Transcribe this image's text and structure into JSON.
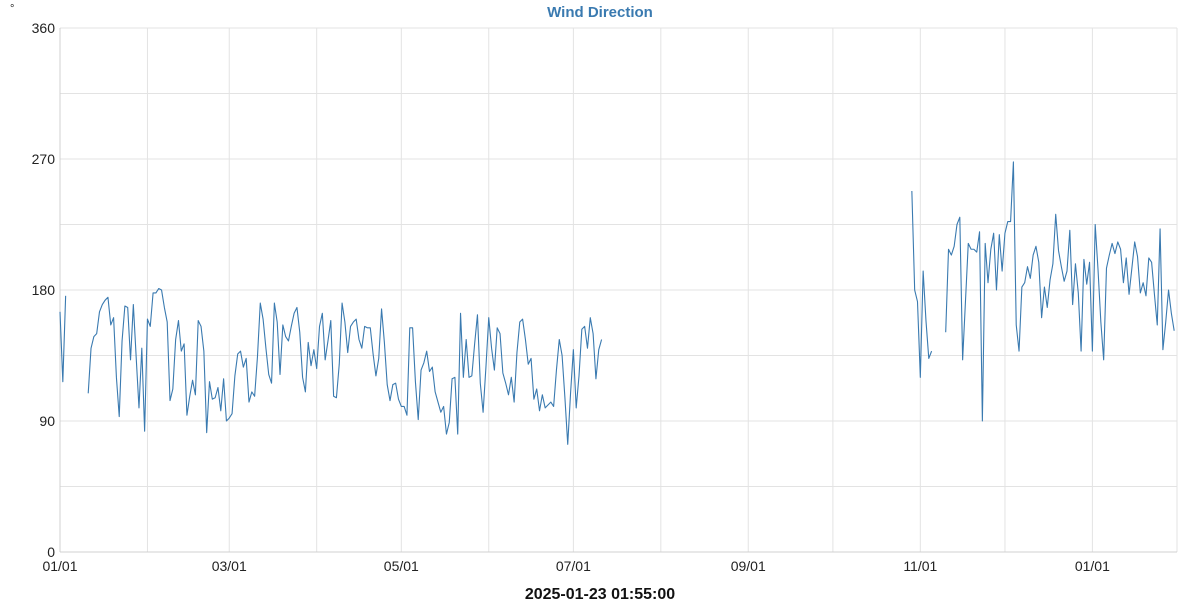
{
  "chart_data": {
    "type": "line",
    "title": "Wind Direction",
    "y_unit": "°",
    "footer": "2025-01-23 01:55:00",
    "ylim": [
      0,
      360
    ],
    "yticks": [
      0,
      90,
      180,
      270,
      360
    ],
    "xlim": [
      "2024-01-01",
      "2025-01-31"
    ],
    "xticks": [
      {
        "date": "2024-01-01",
        "label": "01/01"
      },
      {
        "date": "2024-03-01",
        "label": "03/01"
      },
      {
        "date": "2024-05-01",
        "label": "05/01"
      },
      {
        "date": "2024-07-01",
        "label": "07/01"
      },
      {
        "date": "2024-09-01",
        "label": "09/01"
      },
      {
        "date": "2024-11-01",
        "label": "11/01"
      },
      {
        "date": "2025-01-01",
        "label": "01/01"
      }
    ],
    "x_minor_grid": [
      "2024-02-01",
      "2024-04-01",
      "2024-06-01",
      "2024-08-01",
      "2024-10-01",
      "2024-12-01"
    ],
    "grid": true,
    "line_color": "#3a7ab0",
    "series": [
      {
        "segments": [
          {
            "start": "2024-01-01",
            "values": [
              165,
              117,
              176
            ]
          },
          {
            "start": "2024-01-11",
            "values": [
              109,
              140,
              148,
              150,
              165,
              170,
              173,
              175,
              156,
              161,
              120,
              93,
              145,
              169,
              168,
              132,
              170,
              134,
              99,
              140,
              83,
              160,
              155,
              178,
              178,
              181,
              180,
              168,
              158,
              104,
              112,
              146,
              159,
              138,
              143,
              94,
              107,
              118,
              108,
              159,
              155,
              138,
              82,
              117,
              105,
              106,
              113,
              97,
              119,
              90,
              92,
              95,
              121,
              136,
              138,
              127,
              133,
              103,
              110,
              107,
              134,
              171,
              160,
              140,
              122,
              116,
              171,
              158,
              122,
              156,
              148,
              145,
              155,
              164,
              168,
              151,
              120,
              110,
              144,
              128,
              139,
              126,
              155,
              164,
              132,
              145,
              159,
              107,
              106,
              129,
              171,
              158,
              137,
              155,
              158,
              160,
              146,
              140,
              155,
              154,
              154,
              136,
              121,
              133,
              167,
              144,
              115,
              104,
              115,
              116,
              105,
              100,
              100,
              94,
              154,
              154,
              117,
              91,
              125,
              130,
              138,
              124,
              127,
              110,
              103,
              96,
              100,
              81,
              89,
              119,
              120,
              81,
              164,
              120,
              146,
              120,
              121,
              143,
              163,
              116,
              96,
              127,
              161,
              140,
              125,
              154,
              150,
              123,
              116,
              108,
              120,
              103,
              137,
              158,
              160,
              146,
              129,
              133,
              105,
              112,
              97,
              108,
              99,
              101,
              103,
              100,
              125,
              146,
              135,
              106,
              74,
              109,
              139,
              99,
              121,
              153,
              155,
              140,
              161,
              150,
              119,
              139,
              146
            ]
          },
          {
            "start": "2024-10-29",
            "values": [
              248,
              180,
              172,
              120,
              193,
              159,
              133,
              138
            ]
          },
          {
            "start": "2024-11-10",
            "values": [
              151,
              208,
              204,
              210,
              225,
              230,
              132,
              172,
              212,
              208,
              208,
              206,
              220,
              90,
              212,
              185,
              208,
              219,
              180,
              218,
              193,
              219,
              227,
              227,
              268,
              156,
              138,
              182,
              185,
              196,
              188,
              204,
              210,
              199,
              161,
              182,
              168,
              187,
              198,
              232,
              207,
              196,
              186,
              193,
              221,
              170,
              198,
              178,
              138,
              201,
              184,
              199,
              138,
              225,
              194,
              158,
              132,
              195,
              204,
              212,
              205,
              213,
              208,
              185,
              202,
              177,
              195,
              213,
              203,
              178,
              185,
              176,
              202,
              199,
              177,
              156,
              222,
              139,
              158,
              180,
              164,
              152
            ]
          }
        ]
      }
    ]
  }
}
